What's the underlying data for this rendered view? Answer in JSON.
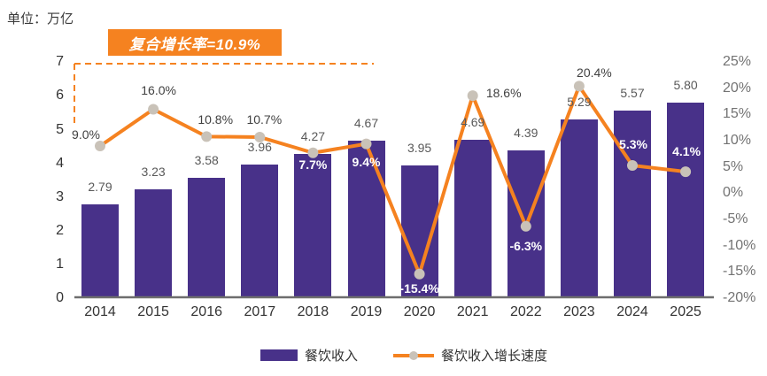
{
  "unit_label": "单位：万亿",
  "badge": {
    "text": "复合增长率=10.9%",
    "bg_color": "#F58220",
    "text_color": "#FFFFFF"
  },
  "legend": {
    "items": [
      {
        "label": "餐饮收入",
        "marker": "bar-swatch",
        "color": "#483189"
      },
      {
        "label": "餐饮收入增长速度",
        "marker": "line-dot-swatch",
        "color": "#F58220",
        "dot_color": "#C9C2B8"
      }
    ]
  },
  "chart_data": {
    "type": "combo_bar_line",
    "title": "",
    "categories": [
      "2014",
      "2015",
      "2016",
      "2017",
      "2018",
      "2019",
      "2020",
      "2021",
      "2022",
      "2023",
      "2024",
      "2025"
    ],
    "series": [
      {
        "name": "餐饮收入",
        "type": "bar",
        "axis": "left",
        "color": "#483189",
        "values": [
          2.79,
          3.23,
          3.58,
          3.96,
          4.27,
          4.67,
          3.95,
          4.69,
          4.39,
          5.29,
          5.57,
          5.8
        ],
        "labels": [
          "2.79",
          "3.23",
          "3.58",
          "3.96",
          "4.27",
          "4.67",
          "3.95",
          "4.69",
          "4.39",
          "5.29",
          "5.57",
          "5.80"
        ]
      },
      {
        "name": "餐饮收入增长速度",
        "type": "line",
        "axis": "right",
        "color": "#F58220",
        "dot_color": "#C9C2B8",
        "values": [
          9.0,
          16.0,
          10.8,
          10.7,
          7.7,
          9.4,
          -15.4,
          18.6,
          -6.3,
          20.4,
          5.3,
          4.1
        ],
        "labels": [
          "9.0%",
          "16.0%",
          "10.8%",
          "10.7%",
          "7.7%",
          "9.4%",
          "-15.4%",
          "18.6%",
          "-6.3%",
          "20.4%",
          "5.3%",
          "4.1%"
        ]
      }
    ],
    "left_axis": {
      "min": 0,
      "max": 7,
      "tick_labels": [
        "0",
        "1",
        "2",
        "3",
        "4",
        "5",
        "6",
        "7"
      ]
    },
    "right_axis": {
      "min": -20,
      "max": 25,
      "tick_labels": [
        "25%",
        "20%",
        "15%",
        "10%",
        "5%",
        "0%",
        "-5%",
        "-10%",
        "-15%",
        "-20%"
      ]
    },
    "annotation": {
      "text": "复合增长率=10.9%"
    },
    "legend_position": "bottom",
    "grid": false,
    "colors": {
      "bar": "#483189",
      "line": "#F58220",
      "dot": "#C9C2B8",
      "axis_line": "#6E6E6E",
      "label_dark": "#404040",
      "label_white": "#FFFFFF"
    }
  }
}
